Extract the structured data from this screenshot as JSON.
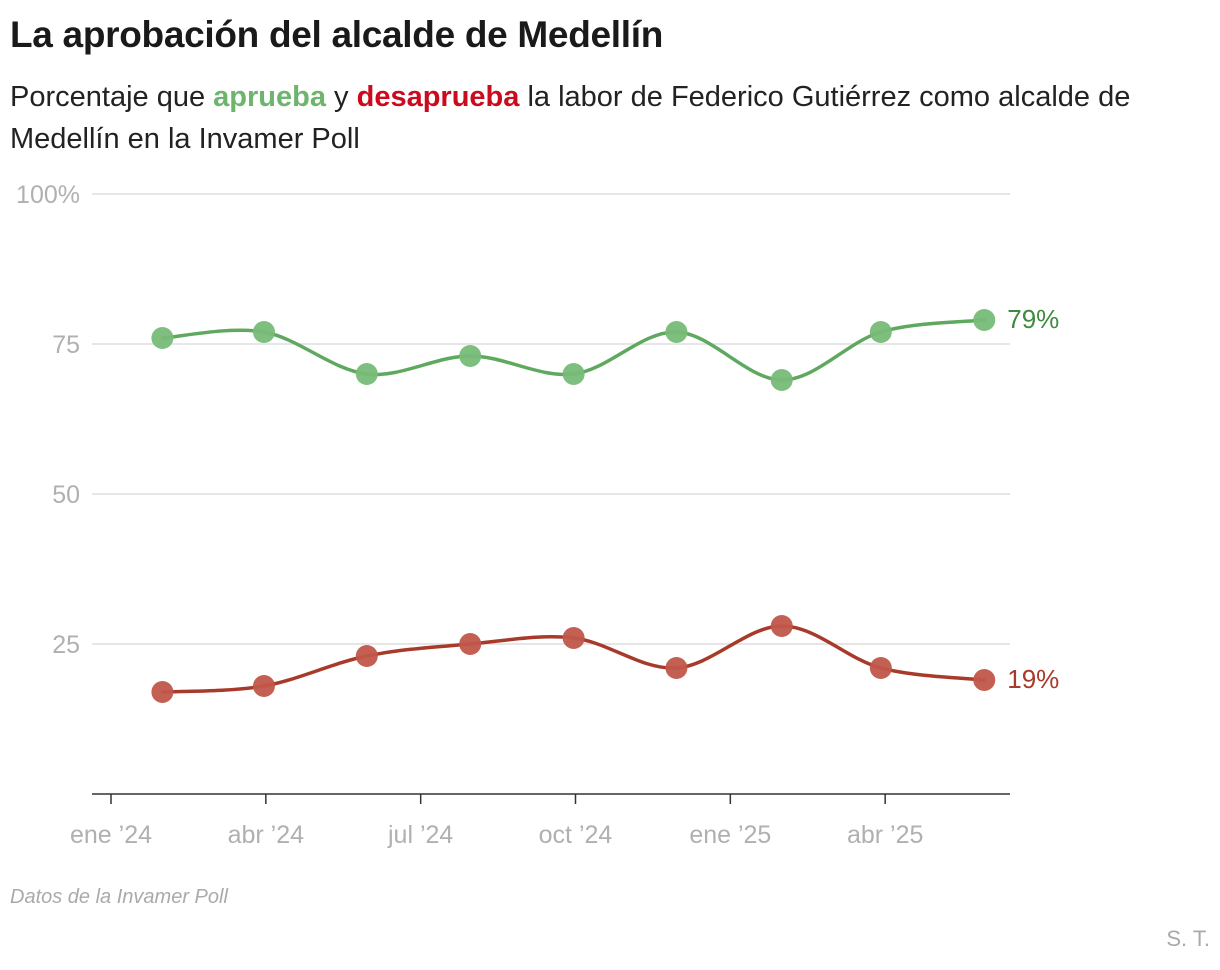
{
  "title": "La aprobación del alcalde de Medellín",
  "subtitle": {
    "prefix": "Porcentaje que ",
    "approve_word": "aprueba",
    "connector": " y ",
    "disapprove_word": "desaprueba",
    "suffix": " la labor de Federico Gutiérrez como alcalde de Medellín en la Invamer Poll"
  },
  "source": "Datos de la Invamer Poll",
  "credit": "S. T.",
  "colors": {
    "approve_line": "#5fa85f",
    "approve_dot": "#77bb77",
    "approve_label": "#3f8a3f",
    "disapprove_line": "#a83a2a",
    "disapprove_dot": "#c0574a",
    "disapprove_label": "#a83a2a",
    "grid": "#dddddd",
    "axis": "#333333"
  },
  "chart_data": {
    "type": "line",
    "title": "La aprobación del alcalde de Medellín",
    "xlabel": "",
    "ylabel": "",
    "ylim": [
      0,
      100
    ],
    "yticks": [
      {
        "value": 100,
        "label": "100%"
      },
      {
        "value": 75,
        "label": "75"
      },
      {
        "value": 50,
        "label": "50"
      },
      {
        "value": 25,
        "label": "25"
      }
    ],
    "xlim": [
      2024.0,
      2025.5
    ],
    "xticks": [
      {
        "value": 2024.0,
        "label": "ene ’24"
      },
      {
        "value": 2024.25,
        "label": "abr ’24"
      },
      {
        "value": 2024.5,
        "label": "jul ’24"
      },
      {
        "value": 2024.75,
        "label": "oct ’24"
      },
      {
        "value": 2025.0,
        "label": "ene ’25"
      },
      {
        "value": 2025.25,
        "label": "abr ’25"
      }
    ],
    "x": [
      2024.083,
      2024.247,
      2024.413,
      2024.58,
      2024.747,
      2024.913,
      2025.083,
      2025.243,
      2025.41
    ],
    "series": [
      {
        "name": "aprueba",
        "values": [
          76,
          77,
          70,
          73,
          70,
          77,
          69,
          77,
          79
        ],
        "end_label": "79%"
      },
      {
        "name": "desaprueba",
        "values": [
          17,
          18,
          23,
          25,
          26,
          21,
          28,
          21,
          19
        ],
        "end_label": "19%"
      }
    ]
  }
}
